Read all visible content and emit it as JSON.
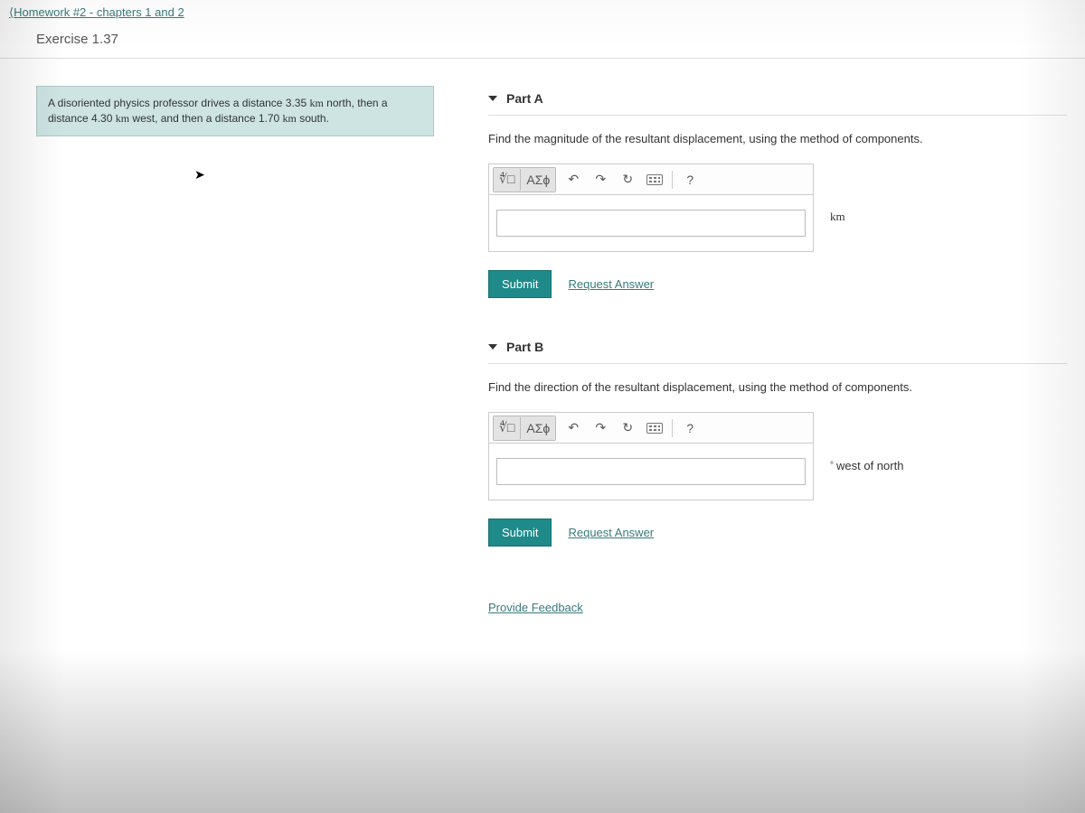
{
  "nav": {
    "back_label": "Homework #2 - chapters 1 and 2",
    "exercise_label": "Exercise 1.37"
  },
  "problem": {
    "text_1": "A disoriented physics professor drives a distance 3.35 ",
    "unit_1": "km",
    "text_2": " north, then a distance 4.30 ",
    "unit_2": "km",
    "text_3": " west, and then a distance 1.70 ",
    "unit_3": "km",
    "text_4": " south."
  },
  "toolbar": {
    "templates_label": "∜□",
    "greek_label": "ΑΣϕ",
    "undo_symbol": "↶",
    "redo_symbol": "↷",
    "reset_symbol": "↻",
    "help_symbol": "?"
  },
  "part_a": {
    "title": "Part A",
    "prompt": "Find the magnitude of the resultant displacement, using the method of components.",
    "unit": "km",
    "submit_label": "Submit",
    "request_label": "Request Answer"
  },
  "part_b": {
    "title": "Part B",
    "prompt": "Find the direction of the resultant displacement, using the method of components.",
    "unit": "west of north",
    "degree_symbol": "°",
    "submit_label": "Submit",
    "request_label": "Request Answer"
  },
  "feedback_label": "Provide Feedback"
}
